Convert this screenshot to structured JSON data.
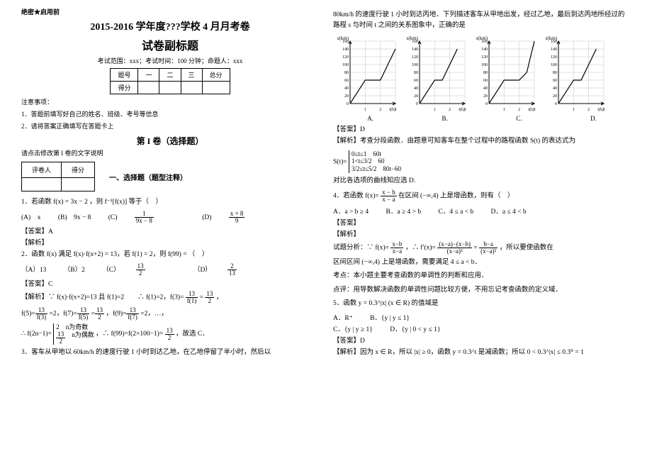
{
  "left": {
    "confidential": "绝密★启用前",
    "main_title": "2015-2016 学年度???学校 4 月月考卷",
    "sub_title": "试卷副标题",
    "exam_info": "考试范围：xxx；考试时间：100 分钟；命题人：xxx",
    "score_table": {
      "headers": [
        "题号",
        "一",
        "二",
        "三",
        "总分"
      ],
      "row": "得分"
    },
    "notes_title": "注意事项：",
    "notes": [
      "1．答题前填写好自己的姓名、班级、考号等信息",
      "2．请将答案正确填写在答题卡上"
    ],
    "section1": "第 I 卷（选择题）",
    "section1_note": "请点击修改第 I 卷的文字说明",
    "eval_headers": [
      "评卷人",
      "得分"
    ],
    "sec_a": "一、选择题（题型注释）",
    "q1": "1．若函数 f(x) = 3x − 2 ，则 f⁻¹[f(x)] 等于（　）",
    "q1_choices": [
      "(A)　x",
      "(B)　9x − 8",
      "(C)",
      "(D)"
    ],
    "q1_c_num": "1",
    "q1_c_den": "9x − 8",
    "q1_d_num": "x + 8",
    "q1_d_den": "9",
    "q1_ans": "【答案】A",
    "q1_exp": "【解析】",
    "q2": "2．函数 f(x) 满足 f(x)·f(x+2) = 13，若 f(1) = 2，则 f(99) = （　）",
    "q2_choices": [
      "（A）13",
      "（B）2",
      "（C）",
      "（D）"
    ],
    "q2_c_num": "13",
    "q2_c_den": "2",
    "q2_d_num": "2",
    "q2_d_den": "13",
    "q2_ans": "【答案】C",
    "q2_exp_line": "【解析】∵ f(x)·f(x+2)=13 且 f(1)=2　　∴ f(1)=2，f(3)=",
    "q2_exp_frac1_num": "13",
    "q2_exp_frac1_den": "f(1)",
    "q2_exp_eq1": "=",
    "q2_exp_frac2_num": "13",
    "q2_exp_frac2_den": "2",
    "q2_exp_comma": "，",
    "q2_line2_a": "f(5)=",
    "q2_line2_b": "=2，f(7)=",
    "q2_line2_c": "=",
    "q2_line2_d": "，f(9)=",
    "q2_line2_e": "=2，…，",
    "q2_f5_num": "13",
    "q2_f5_den": "f(3)",
    "q2_f7a_num": "13",
    "q2_f7a_den": "f(5)",
    "q2_f7b_num": "13",
    "q2_f7b_den": "2",
    "q2_f9_num": "13",
    "q2_f9_den": "f(7)",
    "q2_line3a": "∴ f(2n−1)=",
    "q2_pw1": "2　n为奇数",
    "q2_pw2_num": "13",
    "q2_pw2_den": "2",
    "q2_pw2_txt": "　n为偶数",
    "q2_line3b": "，∴ f(99)=f(2×100−1)=",
    "q2_line3_num": "13",
    "q2_line3_den": "2",
    "q2_line3c": "，故选 C．",
    "q3": "3．客车从甲地以 60km/h 的速度行驶 1 小时到达乙地，在乙地停留了半小时，然后以"
  },
  "right": {
    "q3_cont": "80km/h 的速度行驶 1 小时到达丙地．下列描述客车从甲地出发，经过乙地，最后到达丙地所经过的路程 s 与时间 t 之间的关系图象中，正确的是",
    "axis_y_label": "s(km)",
    "axis_x_label": "t(h)",
    "y_ticks": [
      "160",
      "140",
      "120",
      "100",
      "80",
      "60",
      "40",
      "20",
      "0"
    ],
    "x_ticks": [
      "1",
      "2",
      "3"
    ],
    "chart_labels": [
      "A.",
      "B.",
      "C.",
      "D."
    ],
    "q3_ans": "【答案】D",
    "q3_exp1": "【解析】考查分段函数．由题意可知客车在整个过程中的路程函数 S(t) 的表达式为",
    "q3_pw_label": "S(t)=",
    "q3_pw_lines": [
      "0≤t≤1　60t",
      "1<t≤3/2　60",
      "3/2≤t≤5/2　80t−60"
    ],
    "q3_exp2": "对比各选项的曲线知应选 D.",
    "q4": "4．若函数",
    "q4_fx": "f(x)=",
    "q4_num": "x − b",
    "q4_den": "x − a",
    "q4_b": "在区间 (−∞,4) 上是增函数，则有（　）",
    "q4_choices": [
      "A．a > b ≥ 4",
      "B．a ≥ 4 > b",
      "C．4 ≤ a < b",
      "D．a ≤ 4 < b"
    ],
    "q4_ans": "【答案】",
    "q4_exp": "【解析】",
    "q4_line": "试题分析：∵ f(x)=",
    "q4_l_n1": "x−b",
    "q4_l_d1": "x−a",
    "q4_l_b": "，∴ f′(x)=",
    "q4_l_n2": "(x−a)−(x−b)",
    "q4_l_d2": "(x−a)²",
    "q4_l_c": "=",
    "q4_l_n3": "b−a",
    "q4_l_d3": "(x−a)²",
    "q4_l_d": "，所以要使函数在",
    "q4_line2": "区间区间 (−∞,4) 上是增函数，需要满足 4 ≤ a < b．",
    "q4_kd": "考点：本小题主要考查函数的单调性的判断和应用．",
    "q4_dp": "点评：用导数解决函数的单调性问题比较方便，不用忘记考查函数的定义域．",
    "q5": "5．函数 y = 0.3^|x| (x ∈ R) 的值域是",
    "q5_choices": [
      "A．R⁺",
      "B．{y | y ≤ 1}",
      "C．{y | y ≥ 1}",
      "D．{y | 0 < y ≤ 1}"
    ],
    "q5_ans": "【答案】D",
    "q5_exp": "【解析】因为 x ∈ R，所以 |x| ≥ 0，函数 y = 0.3^t 是减函数；所以 0 < 0.3^|x| ≤ 0.3⁰ = 1"
  },
  "chart_style": {
    "width": 92,
    "height": 110,
    "bg": "#ffffff",
    "grid": "#c0c0c0",
    "axis": "#000000",
    "line": "#000000",
    "y_min": 0,
    "y_max": 160,
    "x_min": 0,
    "x_max": 3,
    "series": {
      "A": [
        [
          0,
          0
        ],
        [
          1,
          60
        ],
        [
          2,
          60
        ],
        [
          3,
          140
        ]
      ],
      "B": [
        [
          0,
          0
        ],
        [
          1,
          60
        ],
        [
          1.5,
          60
        ],
        [
          2.5,
          140
        ]
      ],
      "C": [
        [
          0,
          0
        ],
        [
          1,
          60
        ],
        [
          2,
          60
        ],
        [
          2.5,
          80
        ],
        [
          3,
          160
        ]
      ],
      "D": [
        [
          0,
          0
        ],
        [
          1,
          60
        ],
        [
          1.5,
          60
        ],
        [
          2.5,
          140
        ]
      ]
    }
  }
}
